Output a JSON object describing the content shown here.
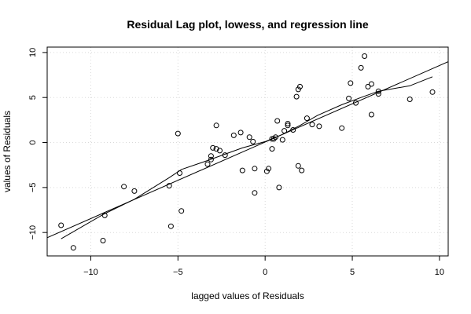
{
  "chart_data": {
    "type": "scatter",
    "title": "Residual Lag plot, lowess, and regression line",
    "xlabel": "lagged values of Residuals",
    "ylabel": "values of Residuals",
    "xlim": [
      -12.5,
      10.5
    ],
    "ylim": [
      -12.6,
      10.6
    ],
    "xticks": [
      -10,
      -5,
      0,
      5,
      10
    ],
    "xtick_labels": [
      "−10",
      "−5",
      "0",
      "5",
      "10"
    ],
    "yticks": [
      -10,
      -5,
      0,
      5,
      10
    ],
    "ytick_labels": [
      "−10",
      "−5",
      "0",
      "5",
      "10"
    ],
    "grid": true,
    "colors": {
      "points": "#000000",
      "lines": "#000000",
      "grid": "#d9d9d9"
    },
    "points": [
      [
        -11.7,
        -9.2
      ],
      [
        -11.0,
        -11.7
      ],
      [
        -9.3,
        -10.9
      ],
      [
        -9.2,
        -8.1
      ],
      [
        -8.1,
        -4.9
      ],
      [
        -7.5,
        -5.4
      ],
      [
        -5.5,
        -4.8
      ],
      [
        -5.4,
        -9.3
      ],
      [
        -5.0,
        1.0
      ],
      [
        -4.9,
        -3.4
      ],
      [
        -4.8,
        -7.6
      ],
      [
        -3.3,
        -2.4
      ],
      [
        -3.1,
        -1.9
      ],
      [
        -3.1,
        -1.5
      ],
      [
        -3.0,
        -0.6
      ],
      [
        -2.8,
        -0.7
      ],
      [
        -2.8,
        1.9
      ],
      [
        -2.6,
        -0.9
      ],
      [
        -2.3,
        -1.4
      ],
      [
        -1.8,
        0.8
      ],
      [
        -1.4,
        1.1
      ],
      [
        -1.3,
        -3.1
      ],
      [
        -0.9,
        0.6
      ],
      [
        -0.7,
        0.1
      ],
      [
        -0.6,
        -5.6
      ],
      [
        -0.6,
        -2.9
      ],
      [
        0.1,
        -3.2
      ],
      [
        0.2,
        -2.9
      ],
      [
        0.4,
        -0.7
      ],
      [
        0.4,
        0.4
      ],
      [
        0.5,
        0.4
      ],
      [
        0.6,
        0.6
      ],
      [
        0.7,
        2.4
      ],
      [
        0.8,
        -5.0
      ],
      [
        1.0,
        0.3
      ],
      [
        1.1,
        1.3
      ],
      [
        1.3,
        1.9
      ],
      [
        1.3,
        2.1
      ],
      [
        1.6,
        1.4
      ],
      [
        1.8,
        5.1
      ],
      [
        1.9,
        -2.6
      ],
      [
        1.9,
        5.9
      ],
      [
        2.0,
        6.2
      ],
      [
        2.1,
        -3.1
      ],
      [
        2.4,
        2.7
      ],
      [
        2.7,
        2.0
      ],
      [
        3.1,
        1.8
      ],
      [
        4.4,
        1.6
      ],
      [
        4.8,
        4.9
      ],
      [
        4.9,
        6.6
      ],
      [
        5.2,
        4.4
      ],
      [
        5.5,
        8.3
      ],
      [
        5.7,
        9.6
      ],
      [
        5.9,
        6.2
      ],
      [
        6.1,
        6.5
      ],
      [
        6.1,
        3.1
      ],
      [
        6.5,
        5.7
      ],
      [
        6.5,
        5.4
      ],
      [
        8.3,
        4.8
      ],
      [
        9.6,
        5.6
      ]
    ],
    "lowess": [
      [
        -11.7,
        -10.7
      ],
      [
        -9.3,
        -8.0
      ],
      [
        -7.5,
        -6.3
      ],
      [
        -5.5,
        -3.9
      ],
      [
        -4.8,
        -3.0
      ],
      [
        -3.3,
        -2.0
      ],
      [
        -2.3,
        -1.3
      ],
      [
        -1.3,
        -0.6
      ],
      [
        0.0,
        0.1
      ],
      [
        1.0,
        0.9
      ],
      [
        2.0,
        1.9
      ],
      [
        3.0,
        3.0
      ],
      [
        4.4,
        4.2
      ],
      [
        5.5,
        5.0
      ],
      [
        6.5,
        5.7
      ],
      [
        8.3,
        6.3
      ],
      [
        9.6,
        7.3
      ]
    ],
    "regression": {
      "intercept": 0.05,
      "slope": 0.85,
      "x_range": [
        -12.5,
        10.5
      ]
    }
  }
}
